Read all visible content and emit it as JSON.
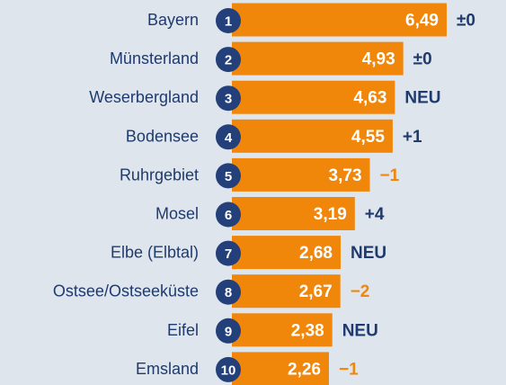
{
  "chart_data": {
    "type": "bar",
    "categories": [
      "Bayern",
      "Münsterland",
      "Weserbergland",
      "Bodensee",
      "Ruhrgebiet",
      "Mosel",
      "Elbe (Elbtal)",
      "Ostsee/Ostseeküste",
      "Eifel",
      "Emsland"
    ],
    "ranks": [
      1,
      2,
      3,
      4,
      5,
      6,
      7,
      8,
      9,
      10
    ],
    "values": [
      6.49,
      4.93,
      4.63,
      4.55,
      3.73,
      3.19,
      2.68,
      2.67,
      2.38,
      2.26
    ],
    "value_labels": [
      "6,49",
      "4,93",
      "4,63",
      "4,55",
      "3,73",
      "3,19",
      "2,68",
      "2,67",
      "2,38",
      "2,26"
    ],
    "changes": [
      "±0",
      "±0",
      "NEU",
      "+1",
      "−1",
      "+4",
      "NEU",
      "−2",
      "NEU",
      "−1"
    ],
    "change_colors": [
      "#1f3a6e",
      "#1f3a6e",
      "#1f3a6e",
      "#1f3a6e",
      "#f0870a",
      "#1f3a6e",
      "#1f3a6e",
      "#f0870a",
      "#1f3a6e",
      "#f0870a"
    ],
    "color": "#f0870a",
    "rank_color": "#23407a"
  }
}
